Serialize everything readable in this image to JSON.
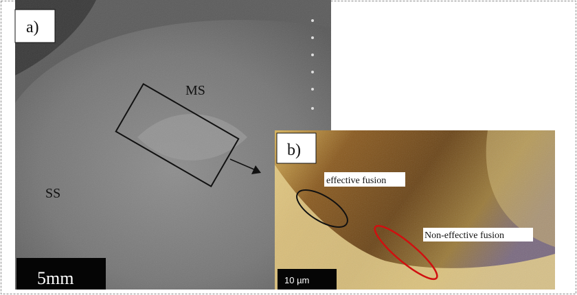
{
  "panel_a": {
    "label": "a)",
    "annotations": [
      "MS",
      "SS"
    ],
    "scale_bar": "5mm"
  },
  "panel_b": {
    "label": "b)",
    "annotations": [
      "effective fusion",
      "Non-effective fusion"
    ],
    "scale_bar": "10 µm"
  }
}
